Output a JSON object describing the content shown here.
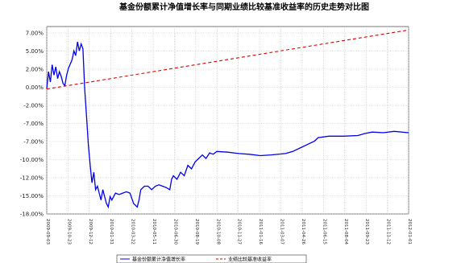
{
  "chart_data": {
    "type": "line",
    "title": "基金份额累计净值增长率与同期业绩比较基准收益率的历史走势对比图",
    "xlabel": "",
    "ylabel": "",
    "y_tick_labels": [
      "7.00%",
      "5.00%",
      "2.00%",
      "0.00%",
      "-2.00%",
      "-7.00%",
      "-7.00%",
      "-10.00%",
      "-12.00%",
      "-15.00%",
      "-18.00%"
    ],
    "x_tick_labels": [
      "2009-09-03",
      "2009-10-23",
      "2009-12-12",
      "2010-01-31",
      "2010-03-22",
      "2010-05-11",
      "2010-06-30",
      "2010-08-19",
      "2010-10-08",
      "2010-11-27",
      "2011-01-16",
      "2011-03-07",
      "2011-04-26",
      "2011-06-15",
      "2011-08-04",
      "2011-09-23",
      "2011-11-12",
      "2012-01-01"
    ],
    "grid": true,
    "legend_position": "bottom",
    "series": [
      {
        "name": "基金份额累计净值增长率",
        "color": "#0000ee",
        "style": "solid",
        "points": [
          [
            0,
            0.0
          ],
          [
            0.005,
            2.5
          ],
          [
            0.01,
            1.0
          ],
          [
            0.015,
            3.5
          ],
          [
            0.02,
            2.0
          ],
          [
            0.025,
            3.2
          ],
          [
            0.03,
            1.5
          ],
          [
            0.035,
            2.5
          ],
          [
            0.04,
            1.8
          ],
          [
            0.045,
            0.8
          ],
          [
            0.05,
            0.5
          ],
          [
            0.055,
            2.0
          ],
          [
            0.06,
            3.0
          ],
          [
            0.065,
            3.6
          ],
          [
            0.07,
            4.2
          ],
          [
            0.075,
            5.5
          ],
          [
            0.08,
            4.8
          ],
          [
            0.085,
            6.8
          ],
          [
            0.09,
            5.5
          ],
          [
            0.095,
            6.5
          ],
          [
            0.1,
            5.8
          ],
          [
            0.105,
            0.0
          ],
          [
            0.11,
            -4.0
          ],
          [
            0.115,
            -8.0
          ],
          [
            0.12,
            -11.0
          ],
          [
            0.125,
            -13.5
          ],
          [
            0.13,
            -12.0
          ],
          [
            0.135,
            -14.5
          ],
          [
            0.14,
            -14.0
          ],
          [
            0.145,
            -15.0
          ],
          [
            0.15,
            -16.0
          ],
          [
            0.155,
            -14.5
          ],
          [
            0.16,
            -15.5
          ],
          [
            0.165,
            -16.5
          ],
          [
            0.17,
            -17.0
          ],
          [
            0.175,
            -15.5
          ],
          [
            0.18,
            -16.0
          ],
          [
            0.19,
            -15.0
          ],
          [
            0.2,
            -15.2
          ],
          [
            0.21,
            -15.0
          ],
          [
            0.22,
            -14.8
          ],
          [
            0.23,
            -15.0
          ],
          [
            0.24,
            -16.5
          ],
          [
            0.25,
            -17.0
          ],
          [
            0.255,
            -16.0
          ],
          [
            0.26,
            -14.5
          ],
          [
            0.27,
            -14.0
          ],
          [
            0.28,
            -14.0
          ],
          [
            0.29,
            -14.5
          ],
          [
            0.3,
            -14.0
          ],
          [
            0.31,
            -13.8
          ],
          [
            0.32,
            -14.0
          ],
          [
            0.33,
            -14.2
          ],
          [
            0.34,
            -14.5
          ],
          [
            0.345,
            -13.0
          ],
          [
            0.35,
            -12.5
          ],
          [
            0.36,
            -13.0
          ],
          [
            0.37,
            -12.0
          ],
          [
            0.38,
            -12.5
          ],
          [
            0.39,
            -11.0
          ],
          [
            0.4,
            -11.5
          ],
          [
            0.41,
            -10.5
          ],
          [
            0.42,
            -10.0
          ],
          [
            0.43,
            -9.5
          ],
          [
            0.44,
            -10.0
          ],
          [
            0.45,
            -9.2
          ],
          [
            0.46,
            -9.4
          ],
          [
            0.47,
            -9.0
          ],
          [
            0.5,
            -9.1
          ],
          [
            0.53,
            -9.3
          ],
          [
            0.56,
            -9.4
          ],
          [
            0.59,
            -9.6
          ],
          [
            0.62,
            -9.5
          ],
          [
            0.66,
            -9.3
          ],
          [
            0.68,
            -9.0
          ],
          [
            0.7,
            -8.5
          ],
          [
            0.72,
            -8.0
          ],
          [
            0.74,
            -7.5
          ],
          [
            0.75,
            -7.0
          ],
          [
            0.78,
            -6.8
          ],
          [
            0.82,
            -6.8
          ],
          [
            0.86,
            -6.7
          ],
          [
            0.88,
            -6.4
          ],
          [
            0.9,
            -6.2
          ],
          [
            0.93,
            -6.3
          ],
          [
            0.96,
            -6.1
          ],
          [
            1.0,
            -6.3
          ]
        ]
      },
      {
        "name": "业绩比较基准收益率",
        "color": "#dd0000",
        "style": "dashed",
        "points": [
          [
            0,
            0.0
          ],
          [
            1.0,
            8.5
          ]
        ]
      }
    ],
    "y_domain": [
      -18.0,
      9.0
    ]
  }
}
